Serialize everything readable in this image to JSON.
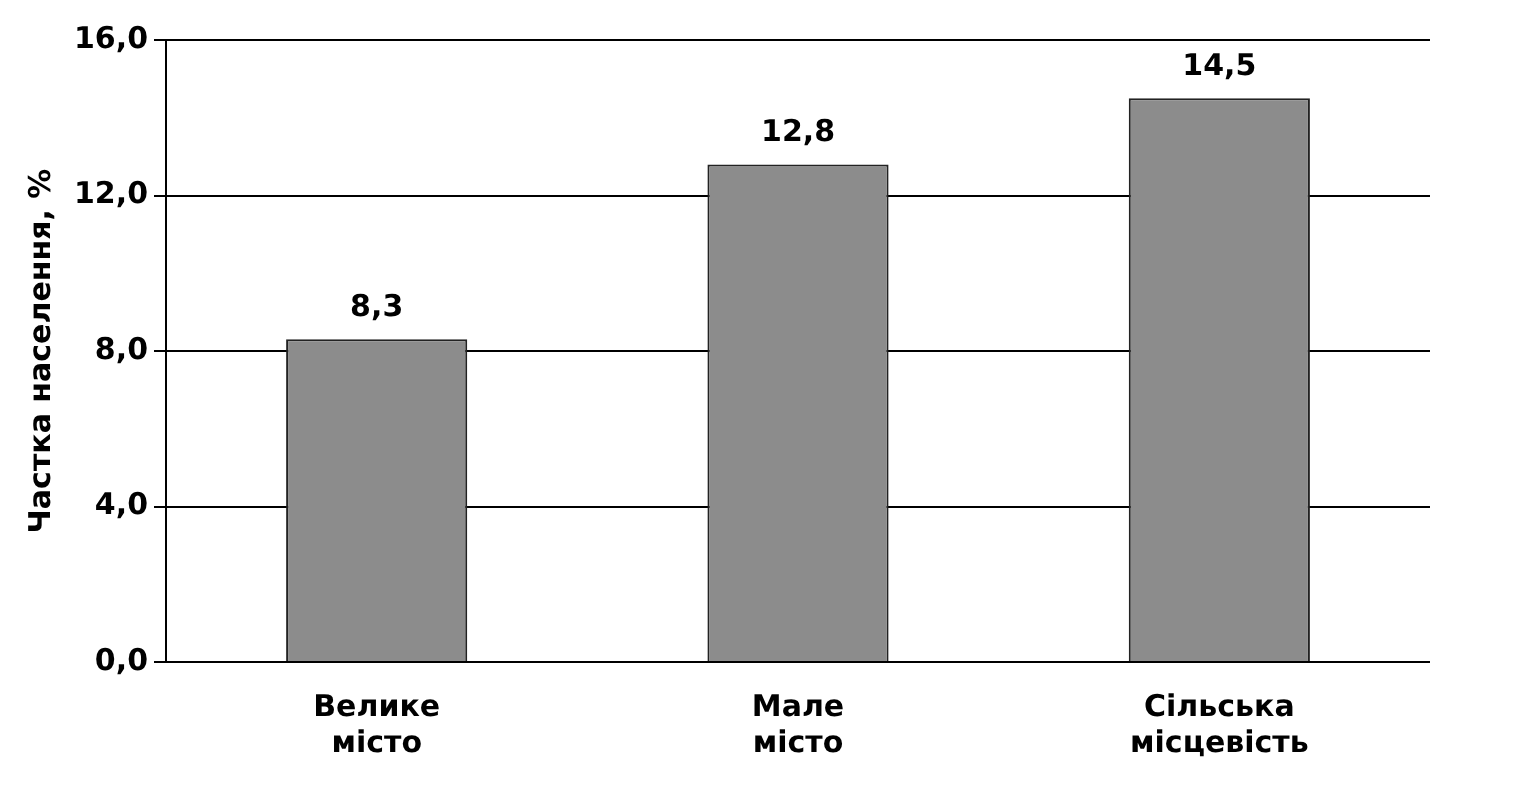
{
  "chart_data": {
    "type": "bar",
    "ylabel": "Частка населення, %",
    "categories": [
      "Велике місто",
      "Мале місто",
      "Сільська місцевість"
    ],
    "values": [
      8.3,
      12.8,
      14.5
    ],
    "color": "#8c8c8c",
    "value_labels": [
      "8,3",
      "12,8",
      "14,5"
    ],
    "ylim": [
      0,
      16
    ],
    "yticks": [
      {
        "value": 0,
        "label": "0,0"
      },
      {
        "value": 4,
        "label": "4,0"
      },
      {
        "value": 8,
        "label": "8,0"
      },
      {
        "value": 12,
        "label": "12,0"
      },
      {
        "value": 16,
        "label": "16,0"
      }
    ],
    "grid": "y",
    "legend": false
  }
}
